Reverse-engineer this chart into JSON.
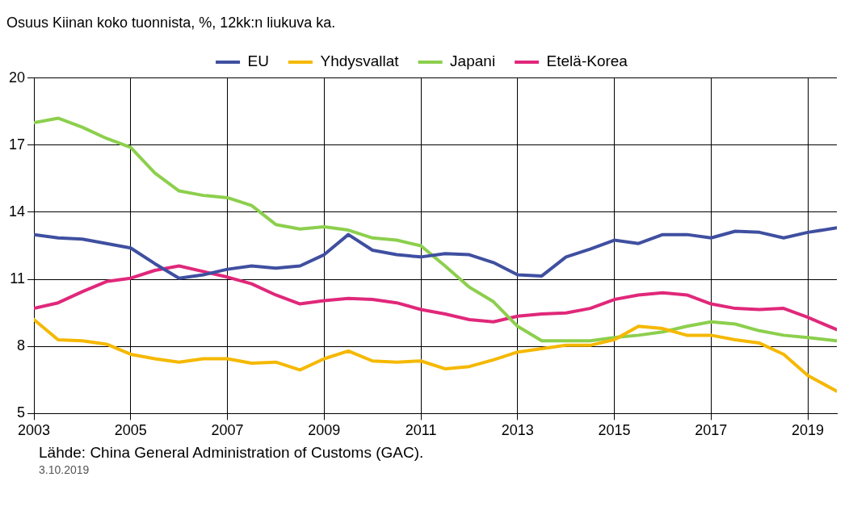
{
  "chart_data": {
    "type": "line",
    "title": "Osuus Kiinan koko tuonnista, %, 12kk:n liukuva ka.",
    "x": [
      2003,
      2003.5,
      2004,
      2004.5,
      2005,
      2005.5,
      2006,
      2006.5,
      2007,
      2007.5,
      2008,
      2008.5,
      2009,
      2009.5,
      2010,
      2010.5,
      2011,
      2011.5,
      2012,
      2012.5,
      2013,
      2013.5,
      2014,
      2014.5,
      2015,
      2015.5,
      2016,
      2016.5,
      2017,
      2017.5,
      2018,
      2018.5,
      2019,
      2019.6
    ],
    "series": [
      {
        "name": "EU",
        "color": "#3f4fa0",
        "values": [
          13.0,
          12.85,
          12.8,
          12.6,
          12.4,
          11.7,
          11.05,
          11.2,
          11.45,
          11.6,
          11.5,
          11.6,
          12.1,
          13.0,
          12.3,
          12.1,
          12.0,
          12.15,
          12.1,
          11.75,
          11.2,
          11.15,
          12.0,
          12.35,
          12.75,
          12.6,
          13.0,
          13.0,
          12.85,
          13.15,
          13.1,
          12.85,
          13.1,
          13.3
        ]
      },
      {
        "name": "Yhdysvallat",
        "color": "#f5b800",
        "values": [
          9.2,
          8.3,
          8.25,
          8.1,
          7.65,
          7.45,
          7.3,
          7.45,
          7.45,
          7.25,
          7.3,
          6.95,
          7.45,
          7.8,
          7.35,
          7.3,
          7.35,
          7.0,
          7.1,
          7.4,
          7.75,
          7.9,
          8.05,
          8.05,
          8.3,
          8.9,
          8.8,
          8.5,
          8.5,
          8.3,
          8.15,
          7.65,
          6.7,
          6.0
        ]
      },
      {
        "name": "Japani",
        "color": "#8ccf4d",
        "values": [
          18.0,
          18.2,
          17.8,
          17.3,
          16.9,
          15.75,
          14.95,
          14.75,
          14.65,
          14.3,
          13.45,
          13.25,
          13.35,
          13.2,
          12.85,
          12.75,
          12.5,
          11.6,
          10.65,
          10.0,
          8.9,
          8.25,
          8.25,
          8.25,
          8.4,
          8.5,
          8.65,
          8.9,
          9.1,
          9.0,
          8.7,
          8.5,
          8.4,
          8.25
        ]
      },
      {
        "name": "Etelä-Korea",
        "color": "#e0287a",
        "values": [
          9.7,
          9.95,
          10.45,
          10.9,
          11.05,
          11.4,
          11.6,
          11.35,
          11.1,
          10.8,
          10.3,
          9.9,
          10.05,
          10.15,
          10.1,
          9.95,
          9.65,
          9.45,
          9.2,
          9.1,
          9.35,
          9.45,
          9.5,
          9.7,
          10.1,
          10.3,
          10.4,
          10.3,
          9.9,
          9.7,
          9.65,
          9.7,
          9.3,
          8.75
        ]
      }
    ],
    "xlim": [
      2003,
      2019.6
    ],
    "xticks": [
      2003,
      2005,
      2007,
      2009,
      2011,
      2013,
      2015,
      2017,
      2019
    ],
    "ylim": [
      5,
      20
    ],
    "yticks": [
      5,
      8,
      11,
      14,
      17,
      20
    ],
    "grid": true,
    "legend": "top",
    "marker": "none",
    "line_style": "solid",
    "annotations": [
      "Lähde: China General Administration of Customs (GAC).",
      "3.10.2019"
    ]
  }
}
